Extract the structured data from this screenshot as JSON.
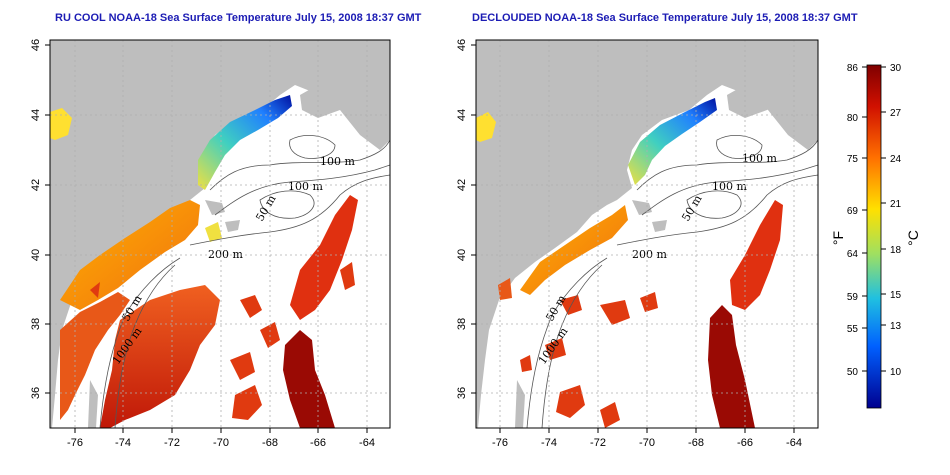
{
  "titles": {
    "left": "RU COOL NOAA-18 Sea Surface Temperature July 15, 2008 18:37 GMT",
    "right": "DECLOUDED NOAA-18 Sea Surface Temperature July 15, 2008 18:37 GMT"
  },
  "axes": {
    "lon_ticks": [
      "-76",
      "-74",
      "-72",
      "-70",
      "-68",
      "-66",
      "-64"
    ],
    "lat_ticks": [
      "36",
      "38",
      "40",
      "42",
      "44",
      "46"
    ]
  },
  "isobaths": {
    "left": [
      "100 m",
      "100 m",
      "50 m",
      "200 m",
      "50 m",
      "1000 m"
    ],
    "right": [
      "100 m",
      "100 m",
      "50 m",
      "200 m",
      "50 m",
      "1000 m"
    ]
  },
  "colorbar": {
    "fahrenheit_ticks": [
      "86",
      "80",
      "75",
      "69",
      "64",
      "59",
      "55",
      "50"
    ],
    "celsius_ticks": [
      "30",
      "27",
      "24",
      "21",
      "18",
      "15",
      "13",
      "10"
    ],
    "fahrenheit_unit": "°F",
    "celsius_unit": "°C",
    "colors": [
      "#7f0000",
      "#e02010",
      "#ff8000",
      "#ffe000",
      "#a0e060",
      "#20c0e0",
      "#0060ff",
      "#00008f"
    ]
  },
  "colors": {
    "land": "#bebebe",
    "title": "#1c1cb4"
  }
}
